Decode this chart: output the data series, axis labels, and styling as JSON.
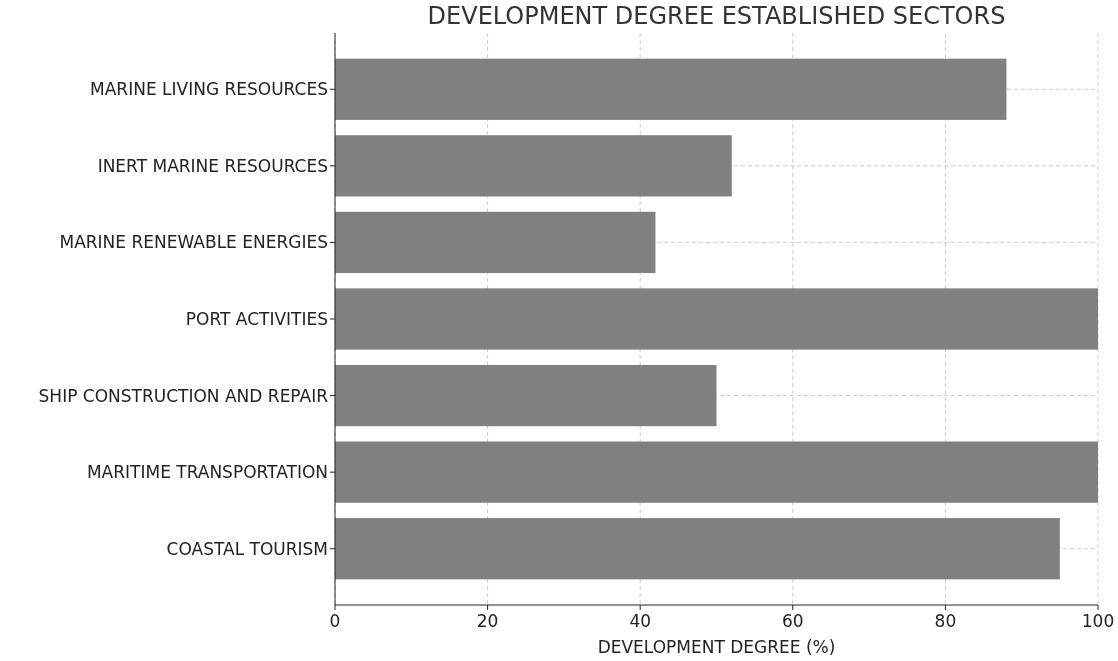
{
  "chart_data": {
    "type": "bar",
    "orientation": "horizontal",
    "title": "DEVELOPMENT DEGREE ESTABLISHED SECTORS",
    "xlabel": "DEVELOPMENT DEGREE (%)",
    "categories": [
      "MARINE LIVING RESOURCES",
      "INERT MARINE RESOURCES",
      "MARINE RENEWABLE ENERGIES",
      "PORT ACTIVITIES",
      "SHIP CONSTRUCTION AND REPAIR",
      "MARITIME TRANSPORTATION",
      "COASTAL TOURISM"
    ],
    "values": [
      88,
      52,
      42,
      100,
      50,
      100,
      95
    ],
    "color": "#808080",
    "xlim": [
      0,
      100
    ],
    "xticks": [
      0,
      20,
      40,
      60,
      80,
      100
    ],
    "grid": true
  }
}
